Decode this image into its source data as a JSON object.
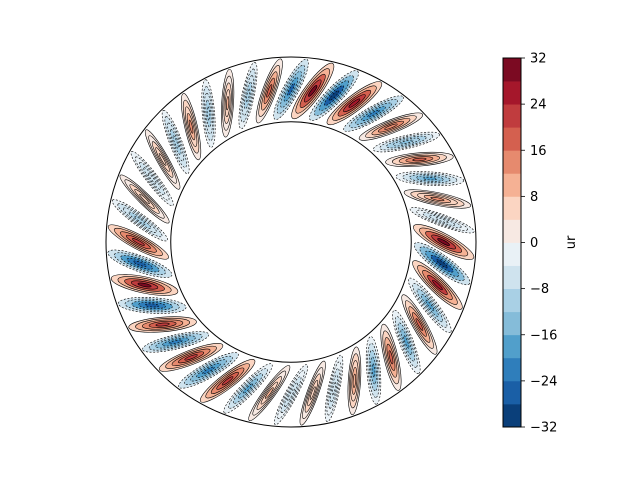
{
  "chart_data": {
    "type": "heatmap",
    "subtype": "annular-contour",
    "title": "",
    "field": "ur",
    "colorbar": {
      "label": "ur",
      "min": -32,
      "max": 32,
      "levels": [
        -32,
        -28,
        -24,
        -20,
        -16,
        -12,
        -8,
        -4,
        0,
        4,
        8,
        12,
        16,
        20,
        24,
        28,
        32
      ],
      "ticks": [
        32,
        24,
        16,
        8,
        0,
        -8,
        -16,
        -24,
        -32
      ],
      "tick_labels": [
        "32",
        "24",
        "16",
        "8",
        "0",
        "−8",
        "−16",
        "−24",
        "−32"
      ],
      "colors": [
        "#0a3f7a",
        "#1a5fa6",
        "#2f7ebb",
        "#519fcb",
        "#85bcd9",
        "#a9d0e5",
        "#cfe3ee",
        "#e9f1f6",
        "#f7e9e3",
        "#fbd5c2",
        "#f5b194",
        "#e68a6e",
        "#d4604f",
        "#c03c3e",
        "#a5172b",
        "#7b0a22"
      ],
      "placement": "right"
    },
    "annulus": {
      "inner_to_outer_radius_ratio": 0.65,
      "azimuthal_cells": 44,
      "pattern": "tilted alternating positive/negative convection cells",
      "contour_lines": "solid for positive, dashed for negative"
    }
  }
}
